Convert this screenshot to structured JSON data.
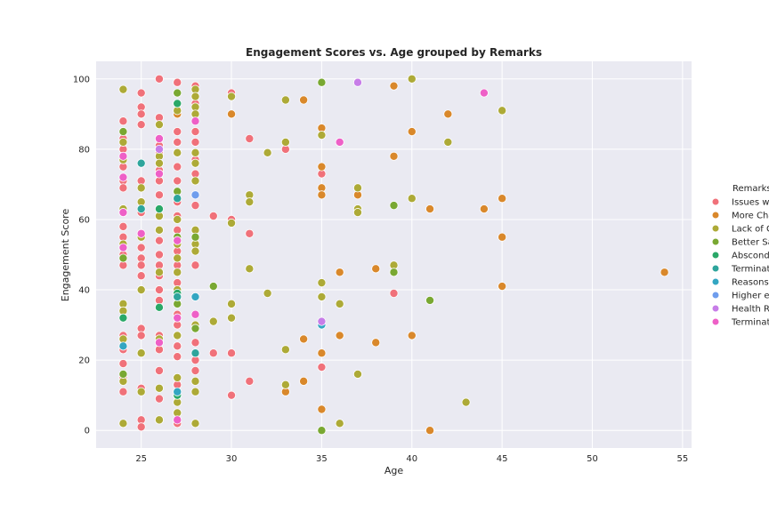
{
  "chart_data": {
    "type": "scatter",
    "title": "Engagement Scores vs. Age grouped by Remarks",
    "xlabel": "Age",
    "ylabel": "Engagement Score",
    "xlim": [
      22.5,
      55.5
    ],
    "ylim": [
      -5,
      105
    ],
    "xticks": [
      25,
      30,
      35,
      40,
      45,
      50,
      55
    ],
    "yticks": [
      0,
      20,
      40,
      60,
      80,
      100
    ],
    "grid": true,
    "legend": {
      "title": "Remarks",
      "placement": "right"
    },
    "series": [
      {
        "name": "Issues wi",
        "color": "#f0717a",
        "points": [
          [
            24,
            88
          ],
          [
            24,
            83
          ],
          [
            24,
            80
          ],
          [
            24,
            75
          ],
          [
            24,
            71
          ],
          [
            24,
            69
          ],
          [
            24,
            62
          ],
          [
            24,
            58
          ],
          [
            24,
            55
          ],
          [
            24,
            52
          ],
          [
            24,
            50
          ],
          [
            24,
            47
          ],
          [
            24,
            27
          ],
          [
            24,
            23
          ],
          [
            24,
            19
          ],
          [
            24,
            15
          ],
          [
            24,
            11
          ],
          [
            25,
            96
          ],
          [
            25,
            92
          ],
          [
            25,
            90
          ],
          [
            25,
            87
          ],
          [
            25,
            71
          ],
          [
            25,
            62
          ],
          [
            25,
            52
          ],
          [
            25,
            49
          ],
          [
            25,
            47
          ],
          [
            25,
            44
          ],
          [
            25,
            29
          ],
          [
            25,
            27
          ],
          [
            25,
            22
          ],
          [
            25,
            12
          ],
          [
            25,
            3
          ],
          [
            25,
            1
          ],
          [
            26,
            100
          ],
          [
            26,
            89
          ],
          [
            26,
            83
          ],
          [
            26,
            81
          ],
          [
            26,
            79
          ],
          [
            26,
            74
          ],
          [
            26,
            71
          ],
          [
            26,
            67
          ],
          [
            26,
            61
          ],
          [
            26,
            54
          ],
          [
            26,
            50
          ],
          [
            26,
            47
          ],
          [
            26,
            44
          ],
          [
            26,
            40
          ],
          [
            26,
            37
          ],
          [
            26,
            27
          ],
          [
            26,
            23
          ],
          [
            26,
            17
          ],
          [
            26,
            9
          ],
          [
            26,
            3
          ],
          [
            27,
            99
          ],
          [
            27,
            85
          ],
          [
            27,
            82
          ],
          [
            27,
            75
          ],
          [
            27,
            71
          ],
          [
            27,
            65
          ],
          [
            27,
            61
          ],
          [
            27,
            57
          ],
          [
            27,
            51
          ],
          [
            27,
            47
          ],
          [
            27,
            42
          ],
          [
            27,
            33
          ],
          [
            27,
            30
          ],
          [
            27,
            27
          ],
          [
            27,
            24
          ],
          [
            27,
            21
          ],
          [
            27,
            13
          ],
          [
            27,
            10
          ],
          [
            27,
            5
          ],
          [
            27,
            2
          ],
          [
            28,
            98
          ],
          [
            28,
            93
          ],
          [
            28,
            85
          ],
          [
            28,
            82
          ],
          [
            28,
            77
          ],
          [
            28,
            73
          ],
          [
            28,
            64
          ],
          [
            28,
            47
          ],
          [
            28,
            25
          ],
          [
            28,
            20
          ],
          [
            28,
            17
          ],
          [
            29,
            61
          ],
          [
            29,
            22
          ],
          [
            30,
            96
          ],
          [
            30,
            60
          ],
          [
            30,
            22
          ],
          [
            30,
            10
          ],
          [
            31,
            83
          ],
          [
            31,
            56
          ],
          [
            31,
            14
          ],
          [
            33,
            80
          ],
          [
            35,
            73
          ],
          [
            35,
            18
          ],
          [
            39,
            39
          ]
        ]
      },
      {
        "name": "More Cha",
        "color": "#d9882b",
        "points": [
          [
            27,
            90
          ],
          [
            30,
            90
          ],
          [
            33,
            11
          ],
          [
            34,
            94
          ],
          [
            34,
            26
          ],
          [
            34,
            14
          ],
          [
            35,
            86
          ],
          [
            35,
            75
          ],
          [
            35,
            69
          ],
          [
            35,
            67
          ],
          [
            35,
            22
          ],
          [
            35,
            6
          ],
          [
            36,
            45
          ],
          [
            36,
            27
          ],
          [
            37,
            67
          ],
          [
            38,
            46
          ],
          [
            38,
            25
          ],
          [
            39,
            98
          ],
          [
            39,
            78
          ],
          [
            40,
            85
          ],
          [
            40,
            27
          ],
          [
            41,
            63
          ],
          [
            41,
            0
          ],
          [
            42,
            90
          ],
          [
            44,
            63
          ],
          [
            45,
            66
          ],
          [
            45,
            55
          ],
          [
            45,
            41
          ],
          [
            54,
            45
          ]
        ]
      },
      {
        "name": "Lack of G",
        "color": "#adaa37",
        "points": [
          [
            24,
            97
          ],
          [
            24,
            82
          ],
          [
            24,
            77
          ],
          [
            24,
            63
          ],
          [
            24,
            53
          ],
          [
            24,
            36
          ],
          [
            24,
            34
          ],
          [
            24,
            26
          ],
          [
            24,
            14
          ],
          [
            24,
            2
          ],
          [
            25,
            69
          ],
          [
            25,
            65
          ],
          [
            25,
            55
          ],
          [
            25,
            40
          ],
          [
            25,
            22
          ],
          [
            25,
            11
          ],
          [
            26,
            87
          ],
          [
            26,
            78
          ],
          [
            26,
            76
          ],
          [
            26,
            61
          ],
          [
            26,
            57
          ],
          [
            26,
            45
          ],
          [
            26,
            26
          ],
          [
            26,
            12
          ],
          [
            26,
            3
          ],
          [
            27,
            91
          ],
          [
            27,
            79
          ],
          [
            27,
            60
          ],
          [
            27,
            53
          ],
          [
            27,
            49
          ],
          [
            27,
            45
          ],
          [
            27,
            40
          ],
          [
            27,
            27
          ],
          [
            27,
            15
          ],
          [
            27,
            8
          ],
          [
            27,
            5
          ],
          [
            28,
            97
          ],
          [
            28,
            95
          ],
          [
            28,
            92
          ],
          [
            28,
            90
          ],
          [
            28,
            79
          ],
          [
            28,
            76
          ],
          [
            28,
            71
          ],
          [
            28,
            57
          ],
          [
            28,
            53
          ],
          [
            28,
            51
          ],
          [
            28,
            30
          ],
          [
            28,
            14
          ],
          [
            28,
            11
          ],
          [
            28,
            2
          ],
          [
            29,
            31
          ],
          [
            30,
            95
          ],
          [
            30,
            59
          ],
          [
            30,
            36
          ],
          [
            30,
            32
          ],
          [
            31,
            67
          ],
          [
            31,
            65
          ],
          [
            31,
            46
          ],
          [
            32,
            79
          ],
          [
            32,
            39
          ],
          [
            33,
            94
          ],
          [
            33,
            82
          ],
          [
            33,
            23
          ],
          [
            33,
            13
          ],
          [
            35,
            84
          ],
          [
            35,
            42
          ],
          [
            35,
            38
          ],
          [
            36,
            36
          ],
          [
            36,
            2
          ],
          [
            37,
            69
          ],
          [
            37,
            63
          ],
          [
            37,
            62
          ],
          [
            37,
            16
          ],
          [
            39,
            47
          ],
          [
            40,
            100
          ],
          [
            40,
            66
          ],
          [
            42,
            82
          ],
          [
            43,
            8
          ],
          [
            45,
            91
          ]
        ]
      },
      {
        "name": "Better Sa",
        "color": "#79a832",
        "points": [
          [
            24,
            85
          ],
          [
            24,
            49
          ],
          [
            24,
            16
          ],
          [
            27,
            96
          ],
          [
            27,
            68
          ],
          [
            27,
            55
          ],
          [
            27,
            36
          ],
          [
            28,
            55
          ],
          [
            28,
            29
          ],
          [
            29,
            41
          ],
          [
            35,
            99
          ],
          [
            35,
            0
          ],
          [
            39,
            64
          ],
          [
            39,
            45
          ],
          [
            41,
            37
          ]
        ]
      },
      {
        "name": "Abscondi",
        "color": "#2aa868",
        "points": [
          [
            24,
            32
          ],
          [
            26,
            63
          ],
          [
            26,
            35
          ],
          [
            27,
            93
          ],
          [
            27,
            39
          ],
          [
            27,
            10
          ]
        ]
      },
      {
        "name": "Terminati",
        "color": "#2ea59c",
        "points": [
          [
            25,
            76
          ],
          [
            25,
            63
          ],
          [
            27,
            66
          ],
          [
            27,
            38
          ],
          [
            28,
            22
          ]
        ]
      },
      {
        "name": "Reasons",
        "color": "#33a6c2",
        "points": [
          [
            24,
            24
          ],
          [
            27,
            11
          ],
          [
            28,
            38
          ],
          [
            35,
            30
          ]
        ]
      },
      {
        "name": "Higher ed",
        "color": "#6f9ded",
        "points": [
          [
            28,
            67
          ]
        ]
      },
      {
        "name": "Health Re",
        "color": "#c77de8",
        "points": [
          [
            26,
            80
          ],
          [
            35,
            31
          ],
          [
            37,
            99
          ]
        ]
      },
      {
        "name": "Terminati",
        "color": "#ee60c7",
        "points": [
          [
            24,
            78
          ],
          [
            24,
            72
          ],
          [
            24,
            62
          ],
          [
            24,
            52
          ],
          [
            25,
            56
          ],
          [
            26,
            83
          ],
          [
            26,
            73
          ],
          [
            26,
            25
          ],
          [
            27,
            54
          ],
          [
            27,
            32
          ],
          [
            27,
            3
          ],
          [
            28,
            88
          ],
          [
            28,
            33
          ],
          [
            36,
            82
          ],
          [
            44,
            96
          ]
        ]
      }
    ]
  }
}
